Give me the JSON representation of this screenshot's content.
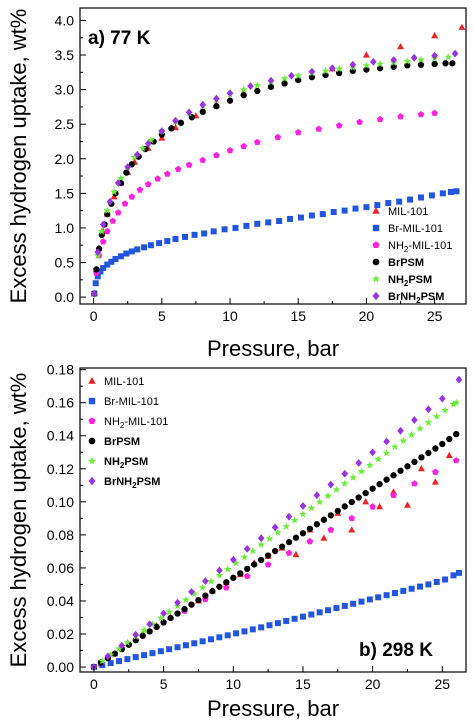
{
  "chart_data": [
    {
      "type": "scatter",
      "title": "a) 77 K",
      "xlabel": "Pressure, bar",
      "ylabel": "Excess hydrogen uptake, wt%",
      "xlim": [
        -1,
        27.3
      ],
      "ylim": [
        -0.1,
        4.18
      ],
      "xticks": [
        0,
        5,
        10,
        15,
        20,
        25
      ],
      "yticks": [
        0.0,
        0.5,
        1.0,
        1.5,
        2.0,
        2.5,
        3.0,
        3.5,
        4.0
      ],
      "ytick_labels": [
        "0.0",
        "0.5",
        "1.0",
        "1.5",
        "2.0",
        "2.5",
        "3.0",
        "3.5",
        "4.0"
      ],
      "legend_position": "lower-right",
      "series": [
        {
          "name": "MIL-101",
          "label_main": "MIL-101",
          "label_sub": "",
          "label_post": "",
          "bold": false,
          "marker": "triangle",
          "color": "#ee2222",
          "x": [
            0.05,
            0.2,
            0.4,
            0.7,
            1.0,
            1.5,
            2.0,
            2.5,
            3.0,
            4.0,
            5.0,
            6.0,
            7.5,
            9.0,
            11.0,
            13.0,
            15.0,
            17.5,
            20.0,
            22.5,
            25.0,
            27.0
          ],
          "y": [
            0.05,
            0.4,
            0.7,
            0.95,
            1.2,
            1.45,
            1.65,
            1.8,
            1.95,
            2.15,
            2.3,
            2.45,
            2.62,
            2.78,
            2.95,
            3.05,
            3.15,
            3.3,
            3.5,
            3.62,
            3.78,
            3.9
          ]
        },
        {
          "name": "Br-MIL-101",
          "label_main": "Br-MIL-101",
          "label_sub": "",
          "label_post": "",
          "bold": false,
          "marker": "square",
          "color": "#2255dd",
          "x": [
            0.05,
            0.15,
            0.3,
            0.5,
            0.7,
            1.0,
            1.3,
            1.6,
            2.0,
            2.4,
            2.8,
            3.2,
            3.7,
            4.2,
            4.8,
            5.4,
            6.0,
            6.7,
            7.4,
            8.1,
            8.8,
            9.6,
            10.4,
            11.2,
            12.0,
            12.8,
            13.6,
            14.4,
            15.2,
            16.0,
            16.8,
            17.6,
            18.4,
            19.2,
            20.0,
            20.8,
            21.6,
            22.4,
            23.2,
            24.0,
            24.8,
            25.6,
            26.2,
            26.6
          ],
          "y": [
            0.05,
            0.2,
            0.3,
            0.37,
            0.42,
            0.47,
            0.51,
            0.55,
            0.59,
            0.63,
            0.66,
            0.69,
            0.72,
            0.75,
            0.78,
            0.81,
            0.84,
            0.87,
            0.9,
            0.92,
            0.95,
            0.98,
            1.0,
            1.03,
            1.06,
            1.08,
            1.1,
            1.13,
            1.15,
            1.18,
            1.2,
            1.23,
            1.25,
            1.28,
            1.3,
            1.33,
            1.36,
            1.38,
            1.41,
            1.44,
            1.47,
            1.5,
            1.52,
            1.53
          ]
        },
        {
          "name": "NH2-MIL-101",
          "label_main": "NH",
          "label_sub": "2",
          "label_post": "-MIL-101",
          "bold": false,
          "marker": "pentagon",
          "color": "#ff22dd",
          "x": [
            0.05,
            0.2,
            0.4,
            0.7,
            1.0,
            1.4,
            1.8,
            2.3,
            2.8,
            3.4,
            4.0,
            4.7,
            5.4,
            6.2,
            7.0,
            8.0,
            9.0,
            10.0,
            11.0,
            12.0,
            13.5,
            15.0,
            16.5,
            18.0,
            19.5,
            21.0,
            22.5,
            24.0,
            25.0
          ],
          "y": [
            0.05,
            0.35,
            0.6,
            0.8,
            0.95,
            1.1,
            1.22,
            1.35,
            1.45,
            1.55,
            1.63,
            1.71,
            1.78,
            1.85,
            1.91,
            1.98,
            2.05,
            2.12,
            2.18,
            2.24,
            2.31,
            2.38,
            2.43,
            2.48,
            2.53,
            2.57,
            2.61,
            2.64,
            2.66
          ]
        },
        {
          "name": "BrPSM",
          "label_main": "BrPSM",
          "label_sub": "",
          "label_post": "",
          "bold": true,
          "marker": "circle",
          "color": "#000000",
          "x": [
            0.05,
            0.2,
            0.4,
            0.6,
            0.8,
            1.0,
            1.3,
            1.6,
            2.0,
            2.4,
            2.8,
            3.3,
            3.8,
            4.4,
            5.0,
            5.7,
            6.4,
            7.2,
            8.0,
            9.0,
            10.0,
            11.0,
            12.0,
            13.0,
            14.0,
            15.0,
            16.0,
            17.0,
            18.0,
            19.0,
            20.0,
            21.0,
            22.0,
            23.0,
            24.0,
            25.0,
            25.8,
            26.3
          ],
          "y": [
            0.05,
            0.4,
            0.7,
            0.9,
            1.05,
            1.2,
            1.35,
            1.5,
            1.65,
            1.8,
            1.92,
            2.03,
            2.14,
            2.25,
            2.35,
            2.44,
            2.52,
            2.6,
            2.68,
            2.76,
            2.84,
            2.92,
            2.98,
            3.04,
            3.09,
            3.14,
            3.18,
            3.21,
            3.24,
            3.27,
            3.29,
            3.31,
            3.33,
            3.35,
            3.36,
            3.37,
            3.38,
            3.38
          ]
        },
        {
          "name": "NH2PSM",
          "label_main": "NH",
          "label_sub": "2",
          "label_post": "PSM",
          "bold": true,
          "marker": "star",
          "color": "#66ee33",
          "x": [
            0.05,
            0.3,
            0.6,
            1.0,
            1.5,
            2.0,
            2.5,
            3.0,
            3.6,
            4.2,
            5.0,
            6.0,
            7.0,
            8.0,
            9.0,
            10.0,
            11.0,
            12.0,
            13.0,
            14.0,
            15.0,
            16.0,
            17.0,
            18.0,
            19.0,
            20.0,
            21.0,
            22.0,
            23.0,
            24.0,
            25.0,
            26.0
          ],
          "y": [
            0.05,
            0.6,
            0.95,
            1.25,
            1.52,
            1.72,
            1.88,
            2.02,
            2.15,
            2.27,
            2.4,
            2.54,
            2.66,
            2.76,
            2.85,
            2.93,
            3.0,
            3.06,
            3.11,
            3.16,
            3.2,
            3.24,
            3.27,
            3.3,
            3.32,
            3.35,
            3.37,
            3.39,
            3.41,
            3.43,
            3.45,
            3.47
          ]
        },
        {
          "name": "BrNH2PSM",
          "label_main": "BrNH",
          "label_sub": "2",
          "label_post": "PSM",
          "bold": true,
          "marker": "diamond",
          "color": "#9933dd",
          "x": [
            0.05,
            0.3,
            0.7,
            1.2,
            1.8,
            2.5,
            3.2,
            4.0,
            5.0,
            6.0,
            7.0,
            8.0,
            9.0,
            10.0,
            11.5,
            13.0,
            14.5,
            16.0,
            17.5,
            19.0,
            20.5,
            22.0,
            23.5,
            25.0,
            26.5
          ],
          "y": [
            0.05,
            0.65,
            1.05,
            1.38,
            1.65,
            1.88,
            2.06,
            2.22,
            2.4,
            2.55,
            2.67,
            2.78,
            2.87,
            2.95,
            3.05,
            3.13,
            3.2,
            3.26,
            3.31,
            3.36,
            3.4,
            3.43,
            3.46,
            3.49,
            3.52
          ]
        }
      ]
    },
    {
      "type": "scatter",
      "title": "b) 298 K",
      "xlabel": "Pressure, bar",
      "ylabel": "Excess hydrogen uptake, wt%",
      "xlim": [
        -1,
        26.7
      ],
      "ylim": [
        -0.003,
        0.181
      ],
      "xticks": [
        0,
        5,
        10,
        15,
        20,
        25
      ],
      "yticks": [
        0.0,
        0.02,
        0.04,
        0.06,
        0.08,
        0.1,
        0.12,
        0.14,
        0.16,
        0.18
      ],
      "ytick_labels": [
        "0.00",
        "0.02",
        "0.04",
        "0.06",
        "0.08",
        "0.10",
        "0.12",
        "0.14",
        "0.16",
        "0.18"
      ],
      "legend_position": "top-left",
      "series": [
        {
          "name": "MIL-101",
          "label_main": "MIL-101",
          "label_sub": "",
          "label_post": "",
          "bold": false,
          "marker": "triangle",
          "color": "#ee2222",
          "x": [
            0.5,
            1.5,
            2.5,
            3.5,
            4.5,
            5.5,
            6.5,
            7.5,
            8.5,
            9.5,
            10.5,
            11.5,
            12.5,
            13.5,
            14.5,
            15.5,
            16.5,
            17.5,
            18.5,
            19.5,
            20.5,
            21.5,
            22.5,
            23.5,
            24.5,
            25.5
          ],
          "y": [
            0.002,
            0.008,
            0.014,
            0.02,
            0.025,
            0.03,
            0.035,
            0.04,
            0.046,
            0.051,
            0.056,
            0.063,
            0.067,
            0.072,
            0.068,
            0.083,
            0.078,
            0.093,
            0.083,
            0.1,
            0.097,
            0.106,
            0.098,
            0.12,
            0.112,
            0.128
          ]
        },
        {
          "name": "Br-MIL-101",
          "label_main": "Br-MIL-101",
          "label_sub": "",
          "label_post": "",
          "bold": false,
          "marker": "square",
          "color": "#2255dd",
          "x": [
            0,
            0.6,
            1.2,
            1.8,
            2.4,
            3.0,
            3.6,
            4.2,
            4.8,
            5.4,
            6.0,
            6.6,
            7.2,
            7.8,
            8.4,
            9.0,
            9.6,
            10.2,
            10.8,
            11.4,
            12.0,
            12.6,
            13.2,
            13.8,
            14.4,
            15.0,
            15.6,
            16.2,
            16.8,
            17.4,
            18.0,
            18.6,
            19.2,
            19.8,
            20.4,
            21.0,
            21.6,
            22.2,
            22.8,
            23.4,
            24.0,
            24.6,
            25.2,
            25.8,
            26.2
          ],
          "y": [
            0,
            0.0012,
            0.0024,
            0.0036,
            0.0048,
            0.006,
            0.0072,
            0.0084,
            0.0096,
            0.0108,
            0.012,
            0.0132,
            0.0144,
            0.0156,
            0.0168,
            0.018,
            0.0192,
            0.0204,
            0.0216,
            0.0228,
            0.024,
            0.0253,
            0.0266,
            0.0279,
            0.0292,
            0.0305,
            0.0318,
            0.0331,
            0.0344,
            0.0357,
            0.037,
            0.0383,
            0.0396,
            0.0409,
            0.0422,
            0.0435,
            0.0448,
            0.0461,
            0.0474,
            0.0487,
            0.05,
            0.0515,
            0.053,
            0.0555,
            0.057
          ]
        },
        {
          "name": "NH2-MIL-101",
          "label_main": "NH",
          "label_sub": "2",
          "label_post": "-MIL-101",
          "bold": false,
          "marker": "pentagon",
          "color": "#ff22dd",
          "x": [
            0.5,
            2.0,
            3.5,
            5.0,
            6.5,
            8.0,
            9.5,
            11.0,
            12.5,
            14.0,
            15.5,
            17.0,
            18.5,
            20.0,
            21.5,
            23.0,
            24.5,
            26.0
          ],
          "y": [
            0.003,
            0.011,
            0.019,
            0.027,
            0.034,
            0.041,
            0.048,
            0.055,
            0.062,
            0.069,
            0.076,
            0.083,
            0.09,
            0.097,
            0.104,
            0.111,
            0.118,
            0.125
          ]
        },
        {
          "name": "BrPSM",
          "label_main": "BrPSM",
          "label_sub": "",
          "label_post": "",
          "bold": true,
          "marker": "circle",
          "color": "#000000",
          "x": [
            0,
            0.5,
            1.0,
            1.5,
            2.0,
            2.5,
            3.0,
            3.5,
            4.0,
            4.5,
            5.0,
            5.5,
            6.0,
            6.5,
            7.0,
            7.5,
            8.0,
            8.5,
            9.0,
            9.5,
            10.0,
            10.5,
            11.0,
            11.5,
            12.0,
            12.5,
            13.0,
            13.5,
            14.0,
            14.5,
            15.0,
            15.5,
            16.0,
            16.5,
            17.0,
            17.5,
            18.0,
            18.5,
            19.0,
            19.5,
            20.0,
            20.5,
            21.0,
            21.5,
            22.0,
            22.5,
            23.0,
            23.5,
            24.0,
            24.5,
            25.0,
            25.5,
            26.0
          ],
          "y": [
            0,
            0.0027,
            0.0054,
            0.0081,
            0.0108,
            0.0135,
            0.0162,
            0.0189,
            0.0216,
            0.0243,
            0.027,
            0.0297,
            0.0324,
            0.0351,
            0.0378,
            0.0405,
            0.0432,
            0.0459,
            0.0486,
            0.0513,
            0.054,
            0.0567,
            0.0594,
            0.0621,
            0.0648,
            0.0675,
            0.0702,
            0.0729,
            0.0756,
            0.0783,
            0.081,
            0.0837,
            0.0864,
            0.0891,
            0.0918,
            0.0945,
            0.0972,
            0.0999,
            0.1026,
            0.1053,
            0.108,
            0.1107,
            0.1134,
            0.1161,
            0.1188,
            0.1215,
            0.1242,
            0.1269,
            0.1296,
            0.1323,
            0.135,
            0.138,
            0.141
          ]
        },
        {
          "name": "NH2PSM",
          "label_main": "NH",
          "label_sub": "2",
          "label_post": "PSM",
          "bold": true,
          "marker": "star",
          "color": "#66ee33",
          "x": [
            0,
            0.6,
            1.2,
            1.8,
            2.4,
            3.0,
            3.6,
            4.2,
            4.8,
            5.4,
            6.0,
            6.6,
            7.2,
            7.8,
            8.4,
            9.0,
            9.6,
            10.2,
            10.8,
            11.4,
            12.0,
            12.6,
            13.2,
            13.8,
            14.4,
            15.0,
            15.6,
            16.2,
            16.8,
            17.4,
            18.0,
            18.6,
            19.2,
            19.8,
            20.4,
            21.0,
            21.6,
            22.2,
            22.8,
            23.4,
            24.0,
            24.6,
            25.2,
            25.8,
            26.0
          ],
          "y": [
            0,
            0.0037,
            0.0074,
            0.0111,
            0.0148,
            0.0185,
            0.0222,
            0.0259,
            0.0296,
            0.0333,
            0.037,
            0.0407,
            0.0444,
            0.0481,
            0.0518,
            0.0555,
            0.0592,
            0.0629,
            0.0666,
            0.0703,
            0.074,
            0.0777,
            0.0814,
            0.0851,
            0.0888,
            0.0925,
            0.0962,
            0.0999,
            0.1036,
            0.1073,
            0.111,
            0.1147,
            0.1184,
            0.1221,
            0.1258,
            0.1295,
            0.1332,
            0.1369,
            0.1406,
            0.1443,
            0.148,
            0.1517,
            0.1554,
            0.159,
            0.16
          ]
        },
        {
          "name": "BrNH2PSM",
          "label_main": "BrNH",
          "label_sub": "2",
          "label_post": "PSM",
          "bold": true,
          "marker": "diamond",
          "color": "#9933dd",
          "x": [
            0,
            1.0,
            2.0,
            3.0,
            4.0,
            5.0,
            6.0,
            7.0,
            8.0,
            9.0,
            10.0,
            11.0,
            12.0,
            13.0,
            14.0,
            15.0,
            16.0,
            17.0,
            18.0,
            19.0,
            20.0,
            21.0,
            22.0,
            23.0,
            24.0,
            25.0,
            26.2
          ],
          "y": [
            0,
            0.0065,
            0.013,
            0.0195,
            0.026,
            0.0325,
            0.039,
            0.0455,
            0.052,
            0.0585,
            0.065,
            0.0715,
            0.078,
            0.0845,
            0.091,
            0.0975,
            0.104,
            0.1105,
            0.117,
            0.1235,
            0.13,
            0.1365,
            0.143,
            0.1495,
            0.156,
            0.1625,
            0.174
          ]
        }
      ]
    }
  ]
}
